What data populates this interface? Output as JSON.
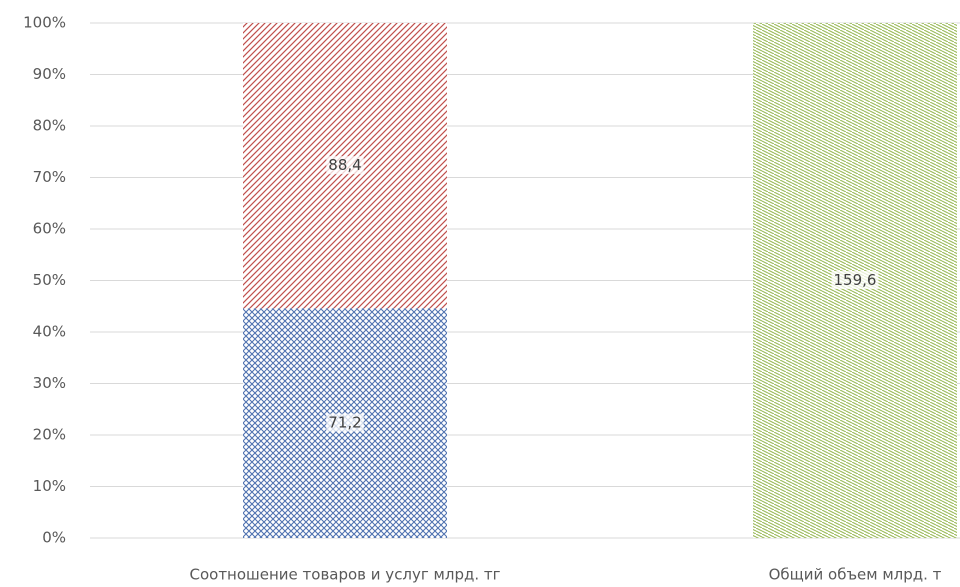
{
  "chart_data": {
    "type": "bar",
    "stacking": "percent",
    "categories": [
      "Соотношение товаров и услуг млрд. тг",
      "Общий объем млрд. т"
    ],
    "series": [
      {
        "color": "#4f72b0",
        "values": [
          71.2,
          null
        ],
        "value_labels": [
          "71,2",
          null
        ]
      },
      {
        "color": "#c0504d",
        "values": [
          88.4,
          null
        ],
        "value_labels": [
          "88,4",
          null
        ]
      },
      {
        "color": "#9bbb59",
        "values": [
          null,
          159.6
        ],
        "value_labels": [
          null,
          "159,6"
        ]
      }
    ],
    "ylim": [
      0,
      100
    ],
    "yticks": [
      {
        "value": 0,
        "label": "0%"
      },
      {
        "value": 10,
        "label": "10%"
      },
      {
        "value": 20,
        "label": "20%"
      },
      {
        "value": 30,
        "label": "30%"
      },
      {
        "value": 40,
        "label": "40%"
      },
      {
        "value": 50,
        "label": "50%"
      },
      {
        "value": 60,
        "label": "60%"
      },
      {
        "value": 70,
        "label": "70%"
      },
      {
        "value": 80,
        "label": "80%"
      },
      {
        "value": 90,
        "label": "90%"
      },
      {
        "value": 100,
        "label": "100%"
      }
    ],
    "grid": true
  }
}
